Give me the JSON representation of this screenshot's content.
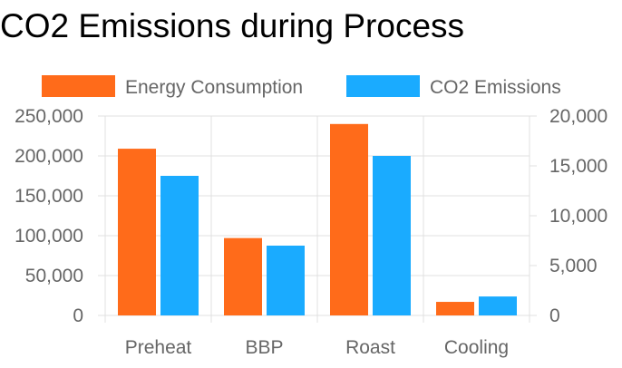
{
  "chart_data": {
    "type": "bar",
    "title": "CO2 Emissions during Process",
    "categories": [
      "Preheat",
      "BBP",
      "Roast",
      "Cooling"
    ],
    "series": [
      {
        "name": "Energy Consumption",
        "axis": "left",
        "color": "#FF6B1A",
        "values": [
          209000,
          97000,
          240000,
          17000
        ]
      },
      {
        "name": "CO2 Emissions",
        "axis": "right",
        "color": "#1AABFF",
        "values": [
          14000,
          7000,
          16000,
          1900
        ]
      }
    ],
    "y_left": {
      "min": 0,
      "max": 250000,
      "ticks": [
        "0",
        "50,000",
        "100,000",
        "150,000",
        "200,000",
        "250,000"
      ]
    },
    "y_right": {
      "min": 0,
      "max": 20000,
      "ticks": [
        "0",
        "5,000",
        "10,000",
        "15,000",
        "20,000"
      ]
    },
    "grid": true,
    "legend": "top"
  }
}
